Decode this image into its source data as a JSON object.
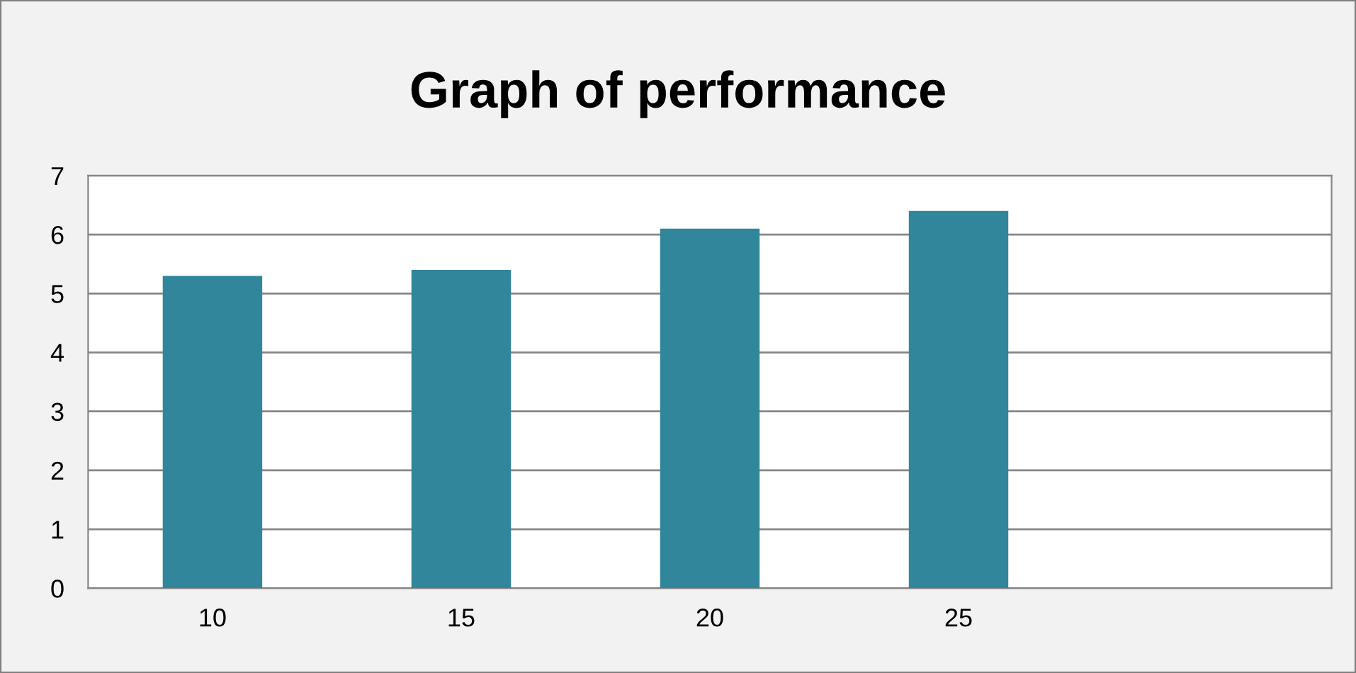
{
  "chart_data": {
    "type": "bar",
    "title": "Graph of performance",
    "categories": [
      "10",
      "15",
      "20",
      "25",
      null
    ],
    "values": [
      5.3,
      5.4,
      6.1,
      6.4,
      null
    ],
    "color": "#31869b",
    "ylim": [
      0,
      7
    ],
    "yticks": [
      0,
      1,
      2,
      3,
      4,
      5,
      6,
      7
    ],
    "grid": "y",
    "legend": false
  }
}
